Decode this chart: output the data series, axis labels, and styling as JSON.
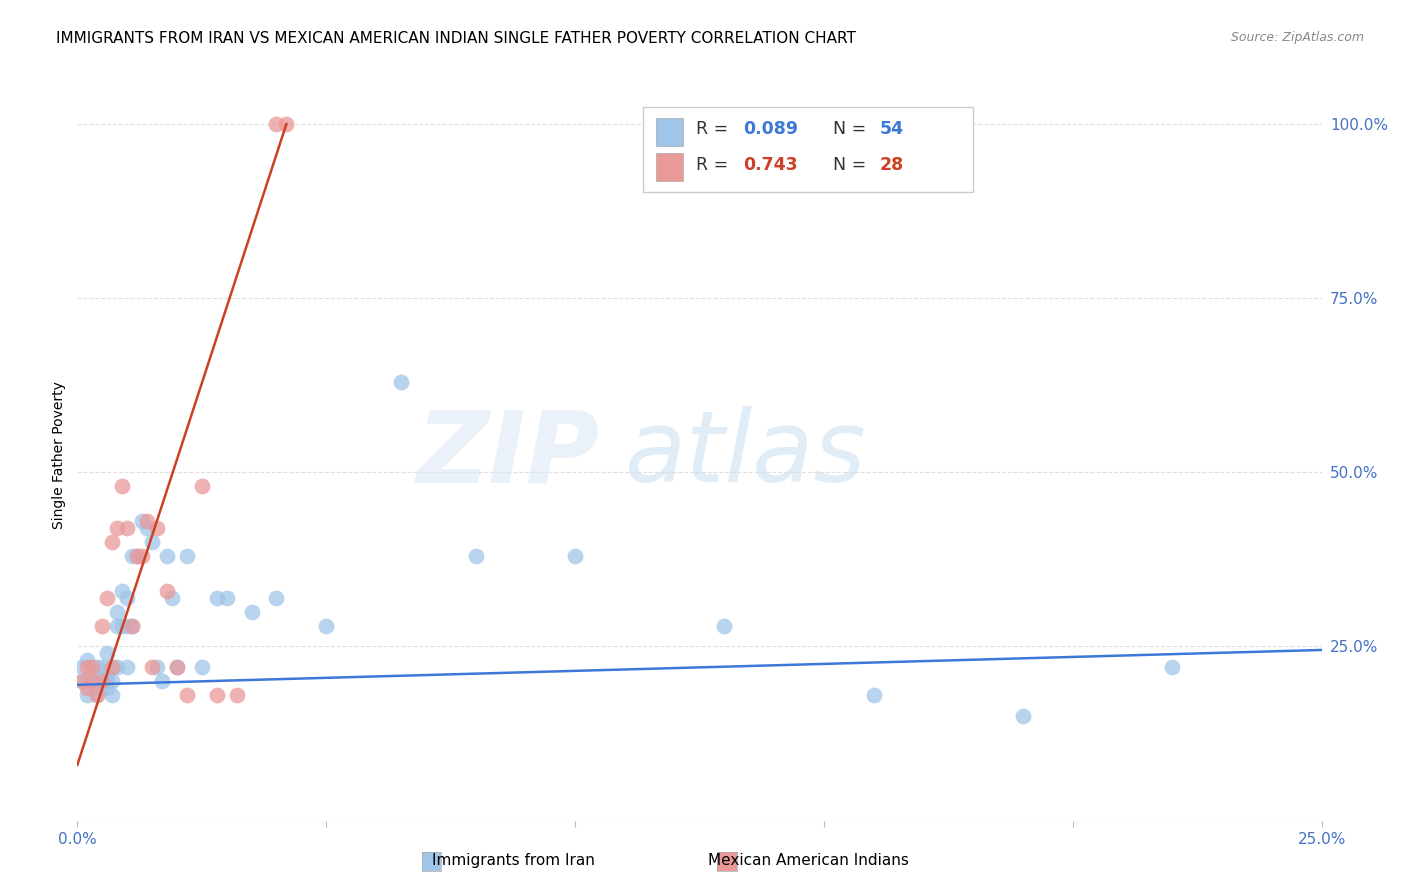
{
  "title": "IMMIGRANTS FROM IRAN VS MEXICAN AMERICAN INDIAN SINGLE FATHER POVERTY CORRELATION CHART",
  "source": "Source: ZipAtlas.com",
  "ylabel": "Single Father Poverty",
  "xlim": [
    0.0,
    0.25
  ],
  "ylim": [
    0.0,
    1.05
  ],
  "xticks": [
    0.0,
    0.05,
    0.1,
    0.15,
    0.2,
    0.25
  ],
  "xticklabels": [
    "0.0%",
    "",
    "",
    "",
    "",
    "25.0%"
  ],
  "yticks_right": [
    0.25,
    0.5,
    0.75,
    1.0
  ],
  "yticklabels_right": [
    "25.0%",
    "50.0%",
    "75.0%",
    "100.0%"
  ],
  "watermark_zip": "ZIP",
  "watermark_atlas": "atlas",
  "legend_r1": "0.089",
  "legend_n1": "54",
  "legend_r2": "0.743",
  "legend_n2": "28",
  "blue_color": "#9fc5e8",
  "pink_color": "#ea9999",
  "blue_line_color": "#3c78d8",
  "pink_line_color": "#cc4125",
  "label1": "Immigrants from Iran",
  "label2": "Mexican American Indians",
  "blue_scatter_x": [
    0.001,
    0.001,
    0.002,
    0.002,
    0.002,
    0.003,
    0.003,
    0.003,
    0.004,
    0.004,
    0.004,
    0.005,
    0.005,
    0.005,
    0.006,
    0.006,
    0.006,
    0.006,
    0.007,
    0.007,
    0.007,
    0.008,
    0.008,
    0.008,
    0.009,
    0.009,
    0.01,
    0.01,
    0.01,
    0.011,
    0.011,
    0.012,
    0.013,
    0.014,
    0.015,
    0.016,
    0.017,
    0.018,
    0.019,
    0.02,
    0.022,
    0.025,
    0.028,
    0.03,
    0.035,
    0.04,
    0.05,
    0.065,
    0.08,
    0.1,
    0.13,
    0.16,
    0.19,
    0.22
  ],
  "blue_scatter_y": [
    0.2,
    0.22,
    0.18,
    0.2,
    0.23,
    0.19,
    0.2,
    0.21,
    0.2,
    0.22,
    0.18,
    0.2,
    0.19,
    0.22,
    0.2,
    0.19,
    0.21,
    0.24,
    0.2,
    0.22,
    0.18,
    0.28,
    0.3,
    0.22,
    0.28,
    0.33,
    0.32,
    0.28,
    0.22,
    0.38,
    0.28,
    0.38,
    0.43,
    0.42,
    0.4,
    0.22,
    0.2,
    0.38,
    0.32,
    0.22,
    0.38,
    0.22,
    0.32,
    0.32,
    0.3,
    0.32,
    0.28,
    0.63,
    0.38,
    0.38,
    0.28,
    0.18,
    0.15,
    0.22
  ],
  "pink_scatter_x": [
    0.001,
    0.002,
    0.002,
    0.003,
    0.003,
    0.004,
    0.005,
    0.005,
    0.006,
    0.007,
    0.007,
    0.008,
    0.009,
    0.01,
    0.011,
    0.012,
    0.013,
    0.014,
    0.015,
    0.016,
    0.018,
    0.02,
    0.022,
    0.025,
    0.028,
    0.032,
    0.04,
    0.042
  ],
  "pink_scatter_y": [
    0.2,
    0.19,
    0.22,
    0.2,
    0.22,
    0.18,
    0.2,
    0.28,
    0.32,
    0.4,
    0.22,
    0.42,
    0.48,
    0.42,
    0.28,
    0.38,
    0.38,
    0.43,
    0.22,
    0.42,
    0.33,
    0.22,
    0.18,
    0.48,
    0.18,
    0.18,
    1.0,
    1.0
  ],
  "blue_line_x": [
    0.0,
    0.25
  ],
  "blue_line_y": [
    0.195,
    0.245
  ],
  "pink_line_x": [
    0.0,
    0.042
  ],
  "pink_line_y": [
    0.08,
    1.0
  ],
  "background_color": "#ffffff",
  "grid_color": "#e0e0e0"
}
